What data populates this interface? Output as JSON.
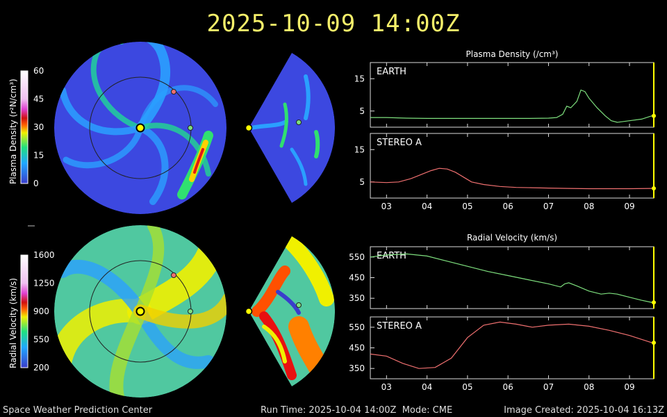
{
  "title": "2025-10-09 14:00Z",
  "footer": {
    "left": "Space Weather Prediction Center",
    "run_time": "Run Time: 2025-10-04 14:00Z",
    "mode": "Mode: CME",
    "image_created": "Image Created: 2025-10-04 16:13Z"
  },
  "colorbars": {
    "density": {
      "label": "Plasma Density (r²N/cm³)",
      "ticks": [
        "60",
        "45",
        "30",
        "15",
        "0"
      ],
      "values": [
        60,
        45,
        30,
        15,
        0
      ]
    },
    "velocity": {
      "label": "Radial Velocity (km/s)",
      "ticks": [
        "1600",
        "1250",
        "900",
        "550",
        "200"
      ],
      "values": [
        1600,
        1250,
        900,
        550,
        200
      ]
    }
  },
  "colors": {
    "earth": "#7ee07e",
    "stereo_a": "#f07070",
    "title": "#f6f06a",
    "sun": "#ffff00"
  },
  "chart_data": [
    {
      "type": "line",
      "title": "Plasma Density (/cm³)",
      "panel": "EARTH",
      "x_ticks": [
        "03",
        "04",
        "05",
        "06",
        "07",
        "08",
        "09"
      ],
      "x": [
        2.6,
        3.0,
        3.5,
        4.0,
        4.5,
        5.0,
        5.5,
        6.0,
        6.5,
        7.0,
        7.2,
        7.35,
        7.45,
        7.55,
        7.7,
        7.8,
        7.9,
        8.0,
        8.2,
        8.4,
        8.55,
        8.7,
        9.0,
        9.3,
        9.55
      ],
      "values": [
        3.0,
        3.0,
        2.8,
        2.7,
        2.7,
        2.7,
        2.7,
        2.7,
        2.7,
        2.8,
        3.0,
        4.0,
        6.5,
        6.0,
        8.0,
        11.5,
        11.0,
        9.0,
        6.0,
        3.5,
        2.0,
        1.5,
        2.0,
        2.5,
        3.5
      ],
      "yticks": [
        5,
        15
      ],
      "ylim": [
        0,
        20
      ]
    },
    {
      "type": "line",
      "panel": "STEREO A",
      "x_ticks": [
        "03",
        "04",
        "05",
        "06",
        "07",
        "08",
        "09"
      ],
      "x": [
        2.6,
        3.0,
        3.3,
        3.6,
        3.9,
        4.1,
        4.3,
        4.5,
        4.7,
        4.9,
        5.1,
        5.4,
        5.8,
        6.2,
        6.6,
        7.0,
        7.5,
        8.0,
        8.5,
        9.0,
        9.55
      ],
      "values": [
        5.0,
        4.8,
        5.0,
        6.0,
        7.5,
        8.5,
        9.2,
        9.0,
        8.0,
        6.5,
        5.0,
        4.2,
        3.6,
        3.3,
        3.2,
        3.1,
        3.0,
        2.9,
        2.9,
        2.9,
        3.0
      ],
      "yticks": [
        5,
        15
      ],
      "ylim": [
        0,
        20
      ]
    },
    {
      "type": "line",
      "title": "Radial Velocity (km/s)",
      "panel": "EARTH",
      "x_ticks": [
        "03",
        "04",
        "05",
        "06",
        "07",
        "08",
        "09"
      ],
      "x": [
        2.6,
        3.0,
        3.5,
        4.0,
        4.5,
        5.0,
        5.5,
        6.0,
        6.5,
        7.0,
        7.3,
        7.4,
        7.5,
        7.7,
        8.0,
        8.3,
        8.5,
        8.7,
        9.0,
        9.3,
        9.55
      ],
      "values": [
        550,
        560,
        565,
        555,
        530,
        505,
        480,
        460,
        440,
        420,
        405,
        420,
        425,
        410,
        385,
        370,
        375,
        370,
        355,
        340,
        330
      ],
      "yticks": [
        350,
        450,
        550
      ],
      "ylim": [
        300,
        600
      ]
    },
    {
      "type": "line",
      "panel": "STEREO A",
      "x_ticks": [
        "03",
        "04",
        "05",
        "06",
        "07",
        "08",
        "09"
      ],
      "x": [
        2.6,
        3.0,
        3.4,
        3.8,
        4.2,
        4.6,
        5.0,
        5.4,
        5.8,
        6.2,
        6.6,
        7.0,
        7.5,
        8.0,
        8.5,
        9.0,
        9.55
      ],
      "values": [
        420,
        410,
        375,
        350,
        355,
        400,
        500,
        560,
        575,
        565,
        550,
        560,
        565,
        555,
        535,
        510,
        475
      ],
      "yticks": [
        350,
        450,
        550
      ],
      "ylim": [
        300,
        600
      ]
    }
  ],
  "section_titles": {
    "density": "Plasma Density (/cm³)",
    "velocity": "Radial Velocity (km/s)"
  }
}
